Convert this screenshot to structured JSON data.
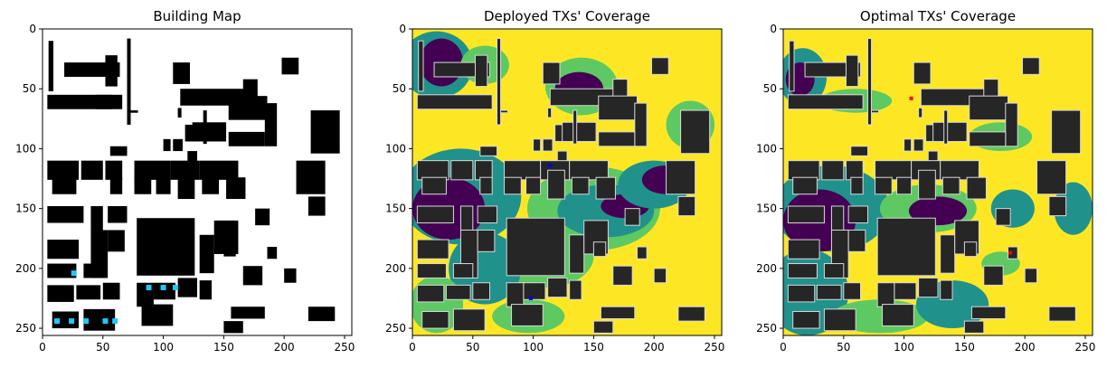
{
  "chart_data": [
    {
      "type": "heatmap",
      "title": "Building Map",
      "xlim": [
        0,
        256
      ],
      "ylim": [
        256,
        0
      ],
      "xticks": [
        0,
        50,
        100,
        150,
        200,
        250
      ],
      "yticks": [
        0,
        50,
        100,
        150,
        200,
        250
      ],
      "colors": {
        "background": "#ffffff",
        "building": "#000000",
        "candidate": "#7cfc00",
        "tx": "#1ec8ff"
      },
      "grid": false
    },
    {
      "type": "heatmap",
      "title": "Deployed TXs' Coverage",
      "xlim": [
        0,
        256
      ],
      "ylim": [
        256,
        0
      ],
      "xticks": [
        0,
        50,
        100,
        150,
        200,
        250
      ],
      "yticks": [
        0,
        50,
        100,
        150,
        200,
        250
      ],
      "colors": {
        "high": "#fde725",
        "mid_high": "#5ec962",
        "mid": "#21918c",
        "low": "#440154",
        "building": "#262626",
        "tx": "#0000ff"
      },
      "grid": false
    },
    {
      "type": "heatmap",
      "title": "Optimal TXs' Coverage",
      "xlim": [
        0,
        256
      ],
      "ylim": [
        256,
        0
      ],
      "xticks": [
        0,
        50,
        100,
        150,
        200,
        250
      ],
      "yticks": [
        0,
        50,
        100,
        150,
        200,
        250
      ],
      "colors": {
        "high": "#fde725",
        "mid_high": "#5ec962",
        "mid": "#21918c",
        "low": "#440154",
        "building": "#262626",
        "tx": "#ff0000"
      },
      "grid": false
    }
  ]
}
